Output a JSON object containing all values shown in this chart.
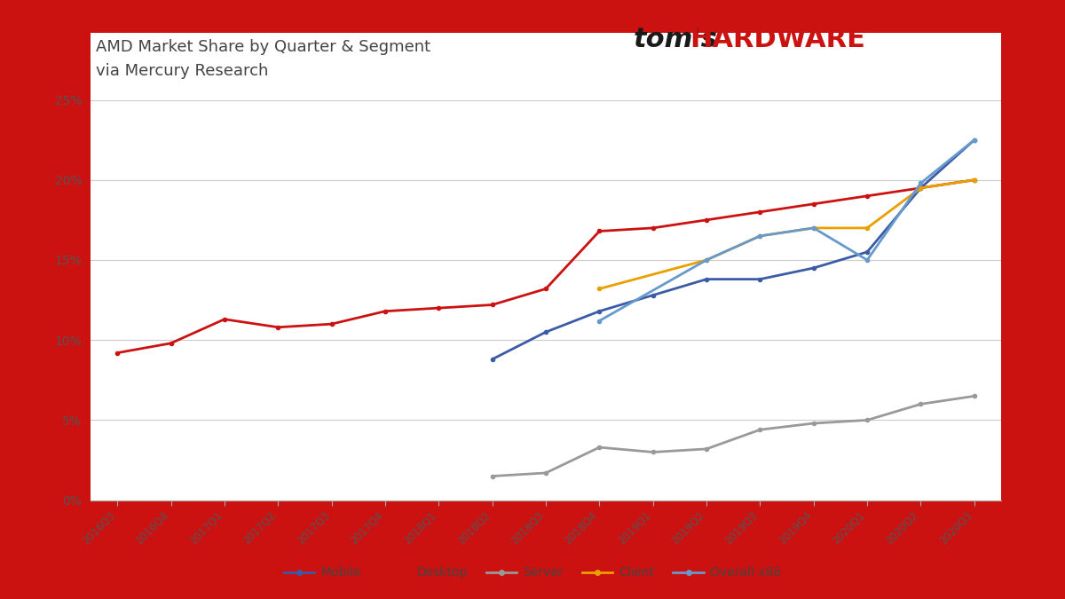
{
  "title_line1": "AMD Market Share by Quarter & Segment",
  "title_line2": "via Mercury Research",
  "title_fontsize": 13,
  "background_outer": "#CC1111",
  "background_inner": "#FFFFFF",
  "quarters": [
    "2016Q3",
    "2016Q4",
    "2017Q1",
    "2017Q2",
    "2017Q3",
    "2017Q4",
    "2018Q1",
    "2018Q2",
    "2018Q3",
    "2018Q4",
    "2019Q1",
    "2019Q2",
    "2019Q3",
    "2019Q4",
    "2020Q1",
    "2020Q2",
    "2020Q3"
  ],
  "mobile": [
    null,
    null,
    null,
    null,
    null,
    null,
    null,
    8.8,
    10.5,
    11.8,
    12.8,
    13.8,
    13.8,
    14.5,
    15.5,
    19.5,
    22.5
  ],
  "desktop": [
    9.2,
    9.8,
    11.3,
    10.8,
    11.0,
    11.8,
    12.0,
    12.2,
    13.2,
    16.8,
    17.0,
    17.5,
    18.0,
    18.5,
    19.0,
    19.5,
    20.0
  ],
  "server": [
    null,
    null,
    null,
    null,
    null,
    null,
    null,
    1.5,
    1.7,
    3.3,
    3.0,
    3.2,
    4.4,
    4.8,
    5.0,
    6.0,
    6.5
  ],
  "client": [
    null,
    null,
    null,
    null,
    null,
    null,
    null,
    null,
    null,
    13.2,
    null,
    15.0,
    16.5,
    17.0,
    17.0,
    19.5,
    20.0
  ],
  "overall_x86": [
    null,
    null,
    null,
    null,
    null,
    null,
    null,
    null,
    null,
    11.2,
    null,
    15.0,
    16.5,
    17.0,
    15.0,
    19.8,
    22.5
  ],
  "mobile_color": "#3B5BA5",
  "desktop_color": "#CC1111",
  "server_color": "#999999",
  "client_color": "#E8A000",
  "overall_x86_color": "#6699CC",
  "ylim": [
    0,
    26
  ],
  "yticks": [
    0,
    5,
    10,
    15,
    20,
    25
  ],
  "ytick_labels": [
    "0%",
    "5%",
    "10%",
    "15%",
    "20%",
    "25%"
  ],
  "legend_labels": [
    "Mobile",
    "Desktop",
    "Server",
    "Client",
    "Overall x86"
  ]
}
